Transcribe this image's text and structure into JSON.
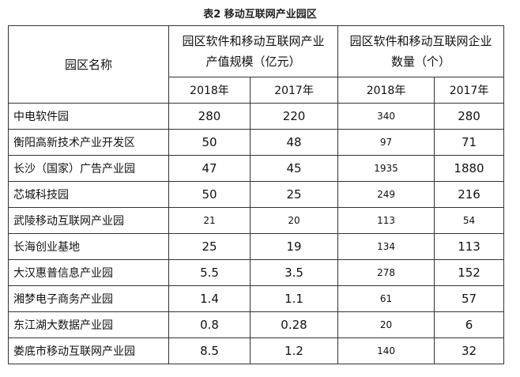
{
  "caption": "表2  移动互联网产业园区",
  "table": {
    "name_header": "园区名称",
    "group1": {
      "line1": "园区软件和移动互联网产业",
      "line2": "产值规模（亿元）"
    },
    "group2": {
      "line1": "园区软件和移动互联网企业",
      "line2": "数量（个）"
    },
    "years": [
      "2018年",
      "2017年",
      "2018年",
      "2017年"
    ],
    "rows": [
      {
        "name": "中电软件园",
        "v2018": "280",
        "v2017": "220",
        "n2018": "340",
        "n2017": "280"
      },
      {
        "name": "衡阳高新技术产业开发区",
        "v2018": "50",
        "v2017": "48",
        "n2018": "97",
        "n2017": "71"
      },
      {
        "name": "长沙（国家）广告产业园",
        "v2018": "47",
        "v2017": "45",
        "n2018": "1935",
        "n2017": "1880"
      },
      {
        "name": "芯城科技园",
        "v2018": "50",
        "v2017": "25",
        "n2018": "249",
        "n2017": "216"
      },
      {
        "name": "武陵移动互联网产业园",
        "v2018": "21",
        "v2017": "20",
        "n2018": "113",
        "n2017": "54"
      },
      {
        "name": "长海创业基地",
        "v2018": "25",
        "v2017": "19",
        "n2018": "134",
        "n2017": "113"
      },
      {
        "name": "大汉惠普信息产业园",
        "v2018": "5.5",
        "v2017": "3.5",
        "n2018": "278",
        "n2017": "152"
      },
      {
        "name": "湘梦电子商务产业园",
        "v2018": "1.4",
        "v2017": "1.1",
        "n2018": "61",
        "n2017": "57"
      },
      {
        "name": "东江湖大数据产业园",
        "v2018": "0.8",
        "v2017": "0.28",
        "n2018": "20",
        "n2017": "6"
      },
      {
        "name": "娄底市移动互联网产业园",
        "v2018": "8.5",
        "v2017": "1.2",
        "n2018": "140",
        "n2017": "32"
      }
    ]
  }
}
